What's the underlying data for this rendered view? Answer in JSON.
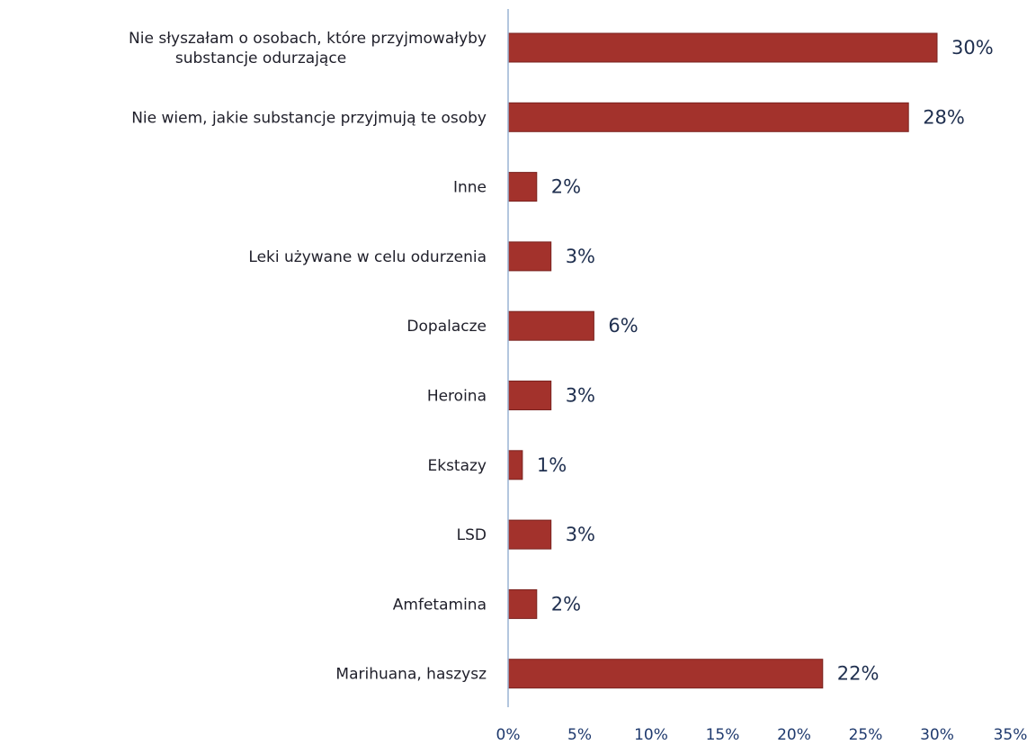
{
  "chart_data": {
    "type": "bar",
    "orientation": "horizontal",
    "categories": [
      "Nie słyszałam o osobach, które przyjmowałyby substancje odurzające",
      "Nie wiem, jakie substancje przyjmują te osoby",
      "Inne",
      "Leki używane w celu odurzenia",
      "Dopalacze",
      "Heroina",
      "Ekstazy",
      "LSD",
      "Amfetamina",
      "Marihuana, haszysz"
    ],
    "values": [
      30,
      28,
      2,
      3,
      6,
      3,
      1,
      3,
      2,
      22
    ],
    "value_labels": [
      "30%",
      "28%",
      "2%",
      "3%",
      "6%",
      "3%",
      "1%",
      "3%",
      "2%",
      "22%"
    ],
    "xlim": [
      0,
      35
    ],
    "x_ticks": [
      0,
      5,
      10,
      15,
      20,
      25,
      30,
      35
    ],
    "x_tick_labels": [
      "0%",
      "5%",
      "10%",
      "15%",
      "20%",
      "25%",
      "30%",
      "35%"
    ],
    "title": "",
    "xlabel": "",
    "ylabel": "",
    "grid": false,
    "legend": "none",
    "colors": {
      "bar": "#a3322c",
      "bar_edge": "#7a2320",
      "axis": "#9ab3d3",
      "value_label": "#1f2f4f",
      "tick_label": "#1f3a6e",
      "category_label": "#1f1f2a"
    }
  }
}
